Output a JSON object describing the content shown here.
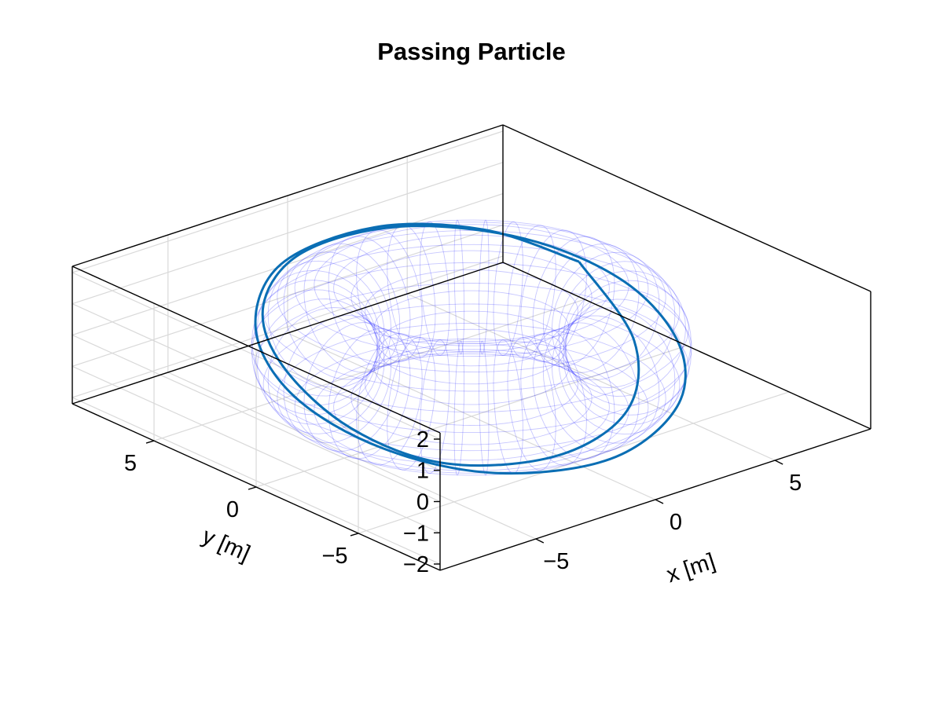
{
  "chart_data": {
    "type": "line3d",
    "title": "Passing Particle",
    "xlabel": "x [m]",
    "ylabel": "y [m]",
    "zlabel": "",
    "xlim": [
      -9,
      9
    ],
    "ylim": [
      -9,
      9
    ],
    "zlim": [
      -2.2,
      2.2
    ],
    "xticks": [
      -5,
      0,
      5
    ],
    "yticks": [
      -5,
      0,
      5
    ],
    "zticks": [
      -2,
      -1,
      0,
      1,
      2
    ],
    "xtick_labels": [
      "−5",
      "0",
      "5"
    ],
    "ytick_labels": [
      "−5",
      "0",
      "5"
    ],
    "ztick_labels": [
      "−2",
      "−1",
      "0",
      "1",
      "2"
    ],
    "grid": true,
    "torus_surface": {
      "style": "wireframe",
      "color": "#0000ff",
      "major_radius": 5,
      "minor_radius": 2
    },
    "series": [
      {
        "color": "#0a6eb4",
        "kind": "3d-trajectory",
        "turns": 2,
        "start": {
          "x": 6.2,
          "y": 2.0,
          "z": 0.6
        },
        "end": {
          "x": 6.2,
          "y": 2.0,
          "z": 0.6
        },
        "x": [
          6.2,
          4.6,
          1.5,
          -2.5,
          -5.6,
          -6.9,
          -6.2,
          -3.8,
          0.0,
          3.8,
          6.2,
          6.9,
          5.6,
          2.5,
          -1.5,
          -4.6,
          -6.2,
          -6.4,
          -4.8,
          -1.2,
          2.4,
          5.0,
          6.2
        ],
        "y": [
          2.0,
          4.8,
          6.5,
          6.4,
          4.0,
          0.6,
          -2.9,
          -5.6,
          -6.8,
          -5.6,
          -2.9,
          0.6,
          4.0,
          6.4,
          6.5,
          4.8,
          2.0,
          -1.6,
          -4.4,
          -5.6,
          -4.8,
          -2.1,
          2.0
        ],
        "z": [
          0.6,
          1.2,
          1.55,
          1.4,
          0.8,
          0.0,
          -0.8,
          -1.4,
          -1.55,
          -1.2,
          -0.6,
          0.2,
          0.9,
          1.35,
          1.5,
          1.1,
          0.4,
          -0.5,
          -1.2,
          -1.5,
          -1.2,
          -0.4,
          0.6
        ]
      }
    ]
  }
}
